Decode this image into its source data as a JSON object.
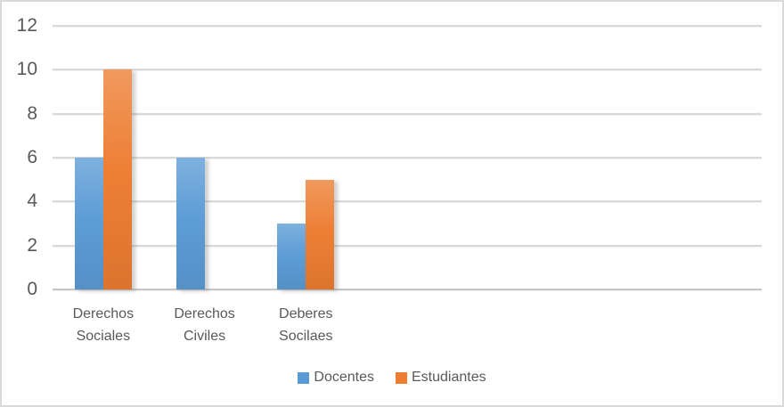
{
  "chart_data": {
    "type": "bar",
    "title": "",
    "categories": [
      "Derechos Sociales",
      "Derechos Civiles",
      "Deberes Socilaes"
    ],
    "series": [
      {
        "name": "Docentes",
        "color": "#5B9BD5",
        "values": [
          6,
          6,
          3
        ]
      },
      {
        "name": "Estudiantes",
        "color": "#ED7D31",
        "values": [
          10,
          0,
          5
        ]
      }
    ],
    "ylim": [
      0,
      12
    ],
    "yticks": [
      0,
      2,
      4,
      6,
      8,
      10,
      12
    ],
    "grid": true,
    "legend_position": "bottom",
    "category_slots": 7,
    "colors": {
      "text": "#595959",
      "gridline": "#D9D9D9",
      "axis": "#C6C6C6",
      "background": "#FFFFFF",
      "border": "#D9D9D9"
    }
  }
}
